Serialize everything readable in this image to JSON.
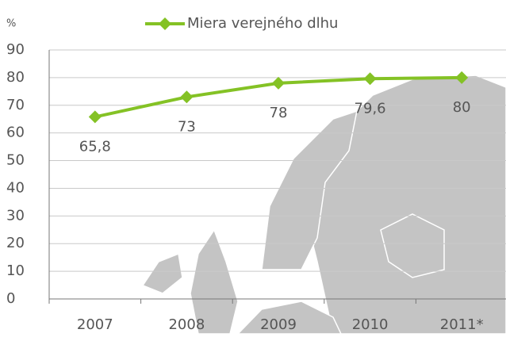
{
  "chart_data": {
    "type": "line",
    "unit": "%",
    "categories": [
      "2007",
      "2008",
      "2009",
      "2010",
      "2011*"
    ],
    "series": [
      {
        "name": "Miera verejného dlhu",
        "color": "#84c225",
        "values": [
          65.8,
          73,
          78,
          79.6,
          80
        ],
        "value_labels": [
          "65,8",
          "73",
          "78",
          "79,6",
          "80"
        ]
      }
    ],
    "ylim": [
      0,
      90
    ],
    "yticks": [
      0,
      10,
      20,
      30,
      40,
      50,
      60,
      70,
      80,
      90
    ],
    "grid": true
  }
}
